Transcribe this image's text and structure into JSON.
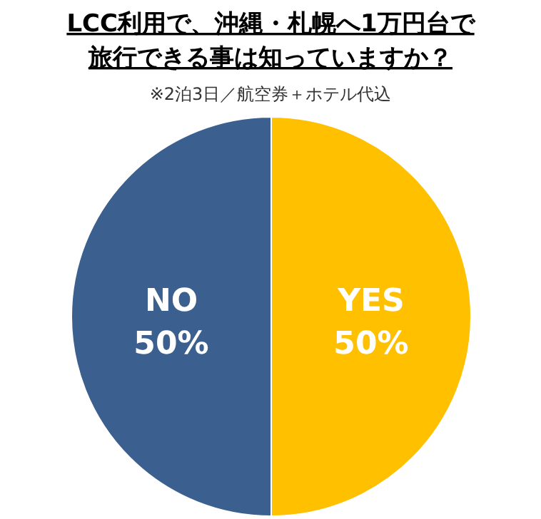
{
  "chart_data": {
    "type": "pie",
    "title": "LCC利用で、沖縄・札幌へ1万円台で旅行できる事は知っていますか？",
    "subtitle": "※2泊3日／航空券＋ホテル代込",
    "categories": [
      "YES",
      "NO"
    ],
    "values": [
      50,
      50
    ],
    "colors": [
      "#ffc000",
      "#3b5f8e"
    ],
    "value_labels": [
      "50%",
      "50%"
    ]
  }
}
